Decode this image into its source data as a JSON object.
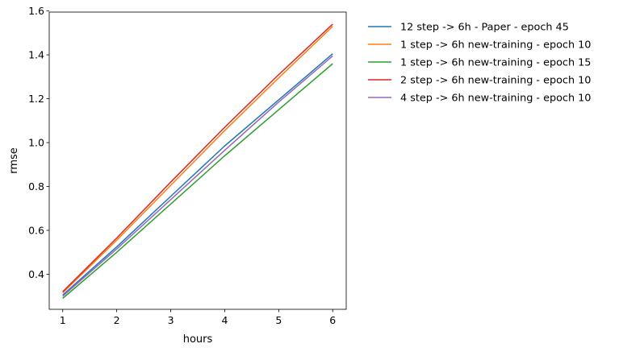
{
  "chart_data": {
    "type": "line",
    "xlabel": "hours",
    "ylabel": "rmse",
    "x": [
      1,
      2,
      3,
      4,
      5,
      6
    ],
    "xlim": [
      0.75,
      6.25
    ],
    "ylim": [
      0.24,
      1.595
    ],
    "xticks": [
      1,
      2,
      3,
      4,
      5,
      6
    ],
    "yticks": [
      0.4,
      0.6,
      0.8,
      1.0,
      1.2,
      1.4,
      1.6
    ],
    "ytick_labels": [
      "0.4",
      "0.6",
      "0.8",
      "1.0",
      "1.2",
      "1.4",
      "1.6"
    ],
    "grid": false,
    "legend_position": "outside-right-top",
    "series": [
      {
        "name": "12 step -> 6h - Paper - epoch 45",
        "color": "#1f77b4",
        "values": [
          0.305,
          0.525,
          0.755,
          0.985,
          1.195,
          1.405
        ]
      },
      {
        "name": "1 step -> 6h new-training - epoch 10",
        "color": "#ff7f0e",
        "values": [
          0.315,
          0.555,
          0.805,
          1.055,
          1.295,
          1.53
        ]
      },
      {
        "name": "1 step -> 6h new-training - epoch 15",
        "color": "#2ca02c",
        "values": [
          0.29,
          0.5,
          0.72,
          0.94,
          1.15,
          1.36
        ]
      },
      {
        "name": "2 step -> 6h new-training - epoch 10",
        "color": "#d62728",
        "values": [
          0.32,
          0.565,
          0.82,
          1.07,
          1.31,
          1.54
        ]
      },
      {
        "name": "4 step -> 6h new-training - epoch 10",
        "color": "#9467bd",
        "values": [
          0.3,
          0.515,
          0.74,
          0.965,
          1.185,
          1.395
        ]
      }
    ]
  }
}
